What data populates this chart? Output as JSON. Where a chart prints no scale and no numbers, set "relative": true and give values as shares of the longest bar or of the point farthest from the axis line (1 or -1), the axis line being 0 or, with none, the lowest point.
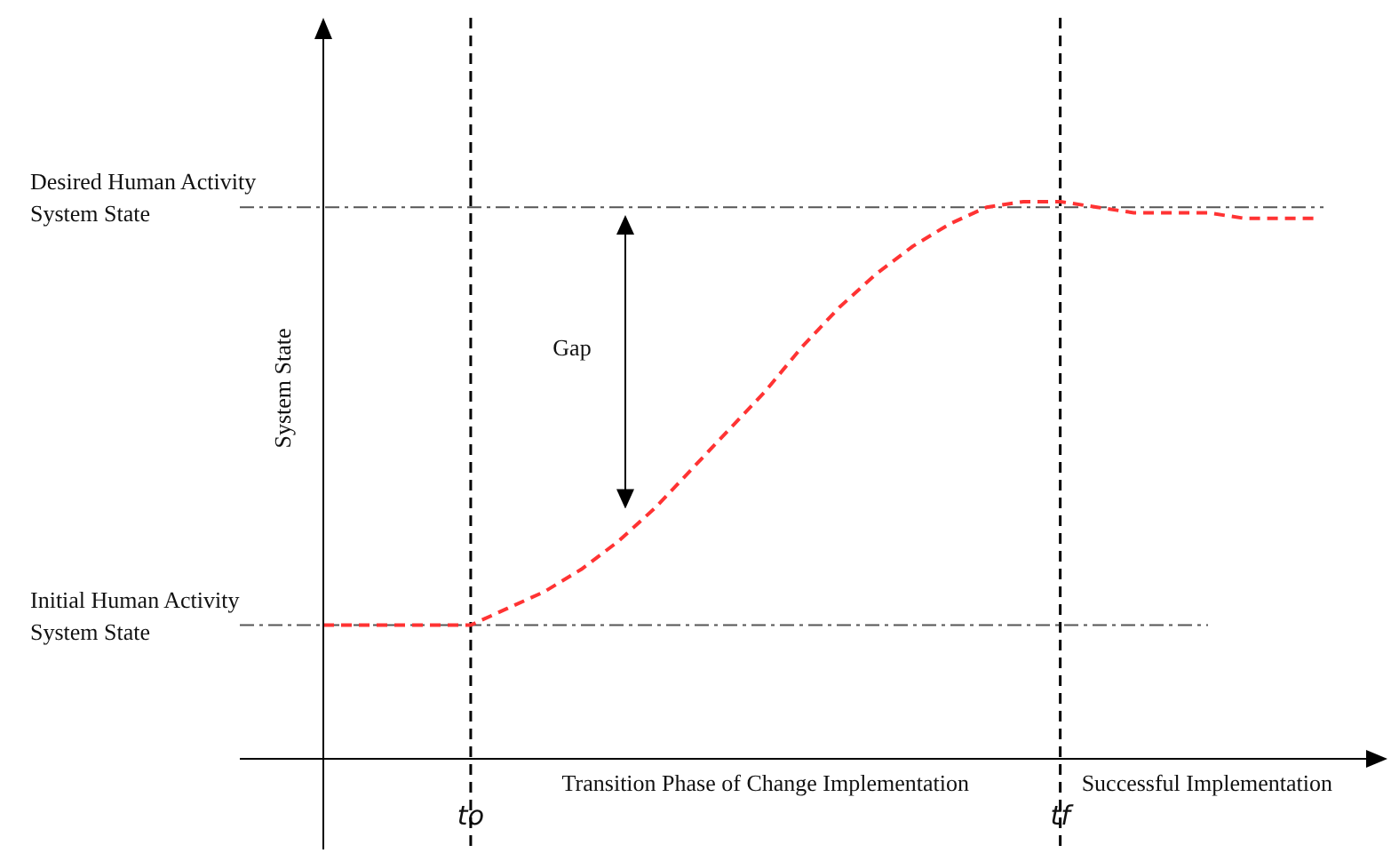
{
  "chart_data": {
    "type": "line",
    "relative": true,
    "ylabel": "System State",
    "tick_labels": "x",
    "grid": false,
    "legend": false,
    "line_style": "dashed",
    "categories": [
      null,
      null,
      null,
      null,
      "to",
      null,
      null,
      null,
      null,
      null,
      null,
      null,
      null,
      null,
      null,
      null,
      null,
      null,
      null,
      null,
      "tf",
      null,
      null,
      null,
      null,
      null,
      null,
      null
    ],
    "series": [
      {
        "color": "#ff3333",
        "values": [
          0.24,
          0.24,
          0.24,
          0.24,
          0.24,
          0.27,
          0.3,
          0.34,
          0.39,
          0.45,
          0.52,
          0.59,
          0.66,
          0.74,
          0.81,
          0.87,
          0.92,
          0.96,
          0.99,
          1,
          1,
          0.99,
          0.98,
          0.98,
          0.98,
          0.97,
          0.97,
          0.97
        ]
      }
    ],
    "ref_lines": [
      {
        "axis": "y",
        "value": 0.99,
        "label": "Desired Human Activity System State",
        "line_style": "dashdot",
        "color": "#555555"
      },
      {
        "axis": "y",
        "value": 0.24,
        "label": "Initial Human Activity System State",
        "line_style": "dashdot",
        "color": "#555555"
      },
      {
        "axis": "x",
        "value": "to",
        "line_style": "dashed",
        "color": "#000000"
      },
      {
        "axis": "x",
        "value": "tf",
        "line_style": "dashed",
        "color": "#000000"
      }
    ],
    "annotations": [
      "Gap",
      "Transition Phase of Change Implementation",
      "Successful Implementation"
    ]
  }
}
